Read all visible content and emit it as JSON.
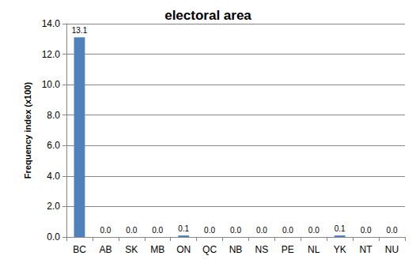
{
  "chart_data": {
    "type": "bar",
    "title": "electoral area",
    "y_label": "Frequency index (x100)",
    "categories": [
      "BC",
      "AB",
      "SK",
      "MB",
      "ON",
      "QC",
      "NB",
      "NS",
      "PE",
      "NL",
      "YK",
      "NT",
      "NU"
    ],
    "values": [
      13.1,
      0.0,
      0.0,
      0.0,
      0.1,
      0.0,
      0.0,
      0.0,
      0.0,
      0.0,
      0.1,
      0.0,
      0.0
    ],
    "value_labels": [
      "13.1",
      "0.0",
      "0.0",
      "0.0",
      "0.1",
      "0.0",
      "0.0",
      "0.0",
      "0.0",
      "0.0",
      "0.1",
      "0.0",
      "0.0"
    ],
    "color": "#4f81bd",
    "ylim": [
      0,
      14
    ],
    "yticks": [
      {
        "value": 0,
        "label": "0.0"
      },
      {
        "value": 2,
        "label": "2.0"
      },
      {
        "value": 4,
        "label": "4.0"
      },
      {
        "value": 6,
        "label": "6.0"
      },
      {
        "value": 8,
        "label": "8.0"
      },
      {
        "value": 10,
        "label": "10.0"
      },
      {
        "value": 12,
        "label": "12.0"
      },
      {
        "value": 14,
        "label": "14.0"
      }
    ],
    "grid": true,
    "data_labels": true
  }
}
